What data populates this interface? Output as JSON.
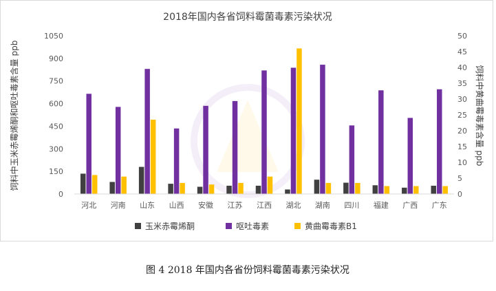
{
  "figure_caption": "图 4  2018 年国内各省份饲料霉菌毒素污染状况",
  "chart_data": {
    "type": "bar",
    "title": "2018年国内各省饲料霉菌毒素污染状况",
    "categories": [
      "河北",
      "河南",
      "山东",
      "山西",
      "安徽",
      "江苏",
      "江西",
      "湖北",
      "湖南",
      "四川",
      "福建",
      "广西",
      "广东"
    ],
    "ylabel_left": "饲料中玉米赤霉烯酮和呕吐毒素含量 ppb",
    "ylabel_right": "饲料中黄曲霉毒素含量 ppb",
    "ylim_left": [
      0,
      1050
    ],
    "yticks_left": [
      "0",
      "150",
      "300",
      "450",
      "600",
      "750",
      "900",
      "1050"
    ],
    "ylim_right": [
      0,
      50
    ],
    "yticks_right": [
      "0",
      "5",
      "10",
      "15",
      "20",
      "25",
      "30",
      "35",
      "40",
      "45",
      "50"
    ],
    "grid": false,
    "legend_position": "bottom",
    "series": [
      {
        "name": "玉米赤霉烯酮",
        "axis": "left",
        "color": "#404040",
        "values": [
          135,
          80,
          180,
          68,
          48,
          55,
          55,
          30,
          95,
          75,
          58,
          42,
          55
        ]
      },
      {
        "name": "呕吐毒素",
        "axis": "left",
        "color": "#7030A0",
        "values": [
          665,
          578,
          830,
          435,
          585,
          617,
          820,
          838,
          858,
          455,
          688,
          505,
          695
        ]
      },
      {
        "name": "黄曲霉毒素B1",
        "axis": "right",
        "color": "#FFC000",
        "values": [
          6,
          5.5,
          23.5,
          3.5,
          3,
          3.5,
          5.5,
          46,
          3.5,
          3.5,
          2.5,
          2.5,
          2.5
        ]
      }
    ]
  }
}
